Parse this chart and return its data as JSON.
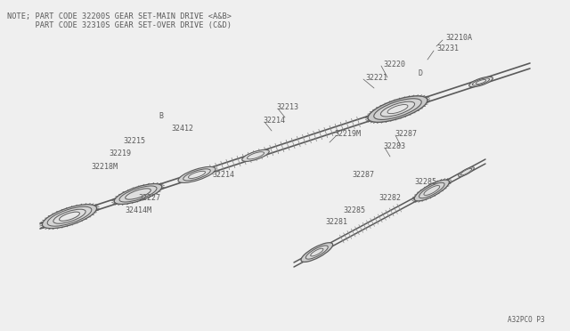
{
  "bg_color": "#efefef",
  "line_color": "#5a5a5a",
  "text_color": "#5a5a5a",
  "note_line1": "NOTE; PART CODE 32200S GEAR SET-MAIN DRIVE <A&B>",
  "note_line2": "      PART CODE 32310S GEAR SET-OVER DRIVE (C&D)",
  "part_ref": "A32PCO P3",
  "fig_w": 6.4,
  "fig_h": 3.72,
  "dpi": 100
}
